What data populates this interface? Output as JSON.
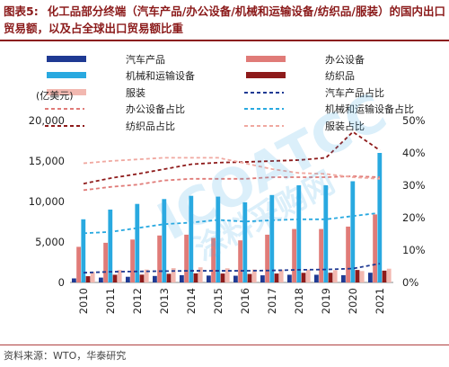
{
  "header": {
    "label": "图表5:",
    "title": "化工品部分终端（汽车产品/办公设备/机械和运输设备/纺织品/服装）的国内出口贸易额，以及占全球出口贸易额比重"
  },
  "source": "资料来源：WTO，华泰研究",
  "watermark": {
    "text1": "ICOATCC",
    "text2": "涂料采购网"
  },
  "colors": {
    "auto": "#1F3A93",
    "office": "#E07B78",
    "machinery": "#29A9E0",
    "textile": "#8E1B1B",
    "clothing": "#F2B8B0",
    "auto_share": "#1F3A93",
    "office_share": "#E07B78",
    "machinery_share": "#29A9E0",
    "textile_share": "#8E1B1B",
    "clothing_share": "#F0A8A0"
  },
  "chart_data": {
    "type": "bar",
    "ylabel": "(亿美元)",
    "ylim": [
      0,
      20000
    ],
    "y_ticks": [
      "0",
      "5,000",
      "10,000",
      "15,000",
      "20,000"
    ],
    "y2lim": [
      0,
      50
    ],
    "y2_ticks": [
      "0%",
      "10%",
      "20%",
      "30%",
      "40%",
      "50%"
    ],
    "categories": [
      "2010",
      "2011",
      "2012",
      "2013",
      "2014",
      "2015",
      "2016",
      "2017",
      "2018",
      "2019",
      "2020",
      "2021"
    ],
    "bar_series": [
      {
        "name": "汽车产品",
        "color_key": "auto",
        "values": [
          500,
          600,
          700,
          800,
          900,
          850,
          830,
          880,
          950,
          950,
          900,
          1200
        ]
      },
      {
        "name": "办公设备",
        "color_key": "office",
        "values": [
          4400,
          4900,
          5300,
          5800,
          5900,
          5500,
          5200,
          5900,
          6600,
          6600,
          6900,
          8400
        ]
      },
      {
        "name": "机械和运输设备",
        "color_key": "machinery",
        "values": [
          7800,
          9000,
          9700,
          10300,
          10700,
          10600,
          9900,
          10800,
          12000,
          12000,
          12500,
          16000
        ]
      },
      {
        "name": "纺织品",
        "color_key": "textile",
        "values": [
          770,
          950,
          960,
          1070,
          1120,
          1100,
          1050,
          1100,
          1190,
          1200,
          1540,
          1460
        ]
      },
      {
        "name": "服装",
        "color_key": "clothing",
        "values": [
          1300,
          1540,
          1590,
          1770,
          1870,
          1750,
          1600,
          1580,
          1580,
          1520,
          1410,
          1700
        ]
      }
    ],
    "line_series": [
      {
        "name": "汽车产品占比",
        "color_key": "auto_share",
        "dash": "dashed",
        "values": [
          3.0,
          3.3,
          3.4,
          3.5,
          3.6,
          3.6,
          3.6,
          3.7,
          3.9,
          4.0,
          4.3,
          5.8
        ]
      },
      {
        "name": "办公设备占比",
        "color_key": "office_share",
        "dash": "dashed",
        "values": [
          28.5,
          29.5,
          30.2,
          31.5,
          32.0,
          32.0,
          32.0,
          32.5,
          32.5,
          32.5,
          32.8,
          32.5
        ]
      },
      {
        "name": "机械和运输设备占比",
        "color_key": "machinery_share",
        "dash": "dashed",
        "values": [
          15.2,
          15.6,
          16.8,
          18.0,
          18.5,
          19.3,
          18.8,
          19.2,
          19.5,
          19.5,
          20.5,
          21.5
        ]
      },
      {
        "name": "纺织品占比",
        "color_key": "textile_share",
        "dash": "dashed",
        "values": [
          30.5,
          32.2,
          33.5,
          35.0,
          36.5,
          37.0,
          37.2,
          37.5,
          37.8,
          38.5,
          46.5,
          40.8
        ]
      },
      {
        "name": "服装占比",
        "color_key": "clothing_share",
        "dash": "dashed",
        "values": [
          36.8,
          37.5,
          38.0,
          38.5,
          38.5,
          38.5,
          36.8,
          35.0,
          33.8,
          33.5,
          32.5,
          32.0
        ]
      }
    ],
    "legend_placement": "top",
    "grid": false
  }
}
